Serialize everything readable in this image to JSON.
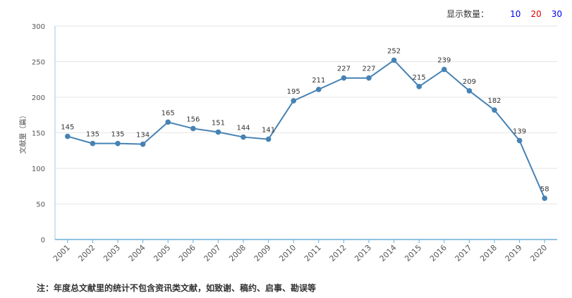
{
  "controls": {
    "label": "显示数量：",
    "options": [
      {
        "text": "10",
        "color": "#0000ee"
      },
      {
        "text": "20",
        "color": "#e00000"
      },
      {
        "text": "30",
        "color": "#0000ee"
      }
    ]
  },
  "chart_data": {
    "type": "line",
    "ylabel": "文献量（篇）",
    "ylim": [
      0,
      300
    ],
    "yticks": [
      0,
      50,
      100,
      150,
      200,
      250,
      300
    ],
    "grid": true,
    "line_color": "#4682b4",
    "categories": [
      "2001",
      "2002",
      "2003",
      "2004",
      "2005",
      "2006",
      "2007",
      "2008",
      "2009",
      "2010",
      "2011",
      "2012",
      "2013",
      "2014",
      "2015",
      "2016",
      "2017",
      "2018",
      "2019",
      "2020"
    ],
    "series": [
      {
        "values": [
          145,
          135,
          135,
          134,
          165,
          156,
          151,
          144,
          141,
          195,
          211,
          227,
          227,
          252,
          215,
          239,
          209,
          182,
          139,
          58
        ]
      }
    ]
  },
  "note": "注：年度总文献里的统计不包含资讯类文献，如致谢、稿约、启事、勘误等"
}
